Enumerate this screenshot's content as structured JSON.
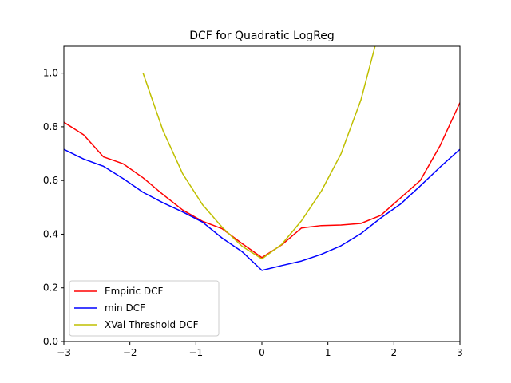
{
  "chart_data": {
    "type": "line",
    "title": "DCF for Quadratic LogReg",
    "xlabel": "",
    "ylabel": "",
    "xlim": [
      -3,
      3
    ],
    "ylim": [
      0,
      1.1
    ],
    "xticks": [
      -3,
      -2,
      -1,
      0,
      1,
      2,
      3
    ],
    "xtick_labels": [
      "−3",
      "−2",
      "−1",
      "0",
      "1",
      "2",
      "3"
    ],
    "yticks": [
      0.0,
      0.2,
      0.4,
      0.6,
      0.8,
      1.0
    ],
    "ytick_labels": [
      "0.0",
      "0.2",
      "0.4",
      "0.6",
      "0.8",
      "1.0"
    ],
    "grid": false,
    "legend_position": "lower-left",
    "x": [
      -3.0,
      -2.7,
      -2.4,
      -2.1,
      -1.8,
      -1.5,
      -1.2,
      -0.9,
      -0.6,
      -0.3,
      0.0,
      0.3,
      0.6,
      0.9,
      1.2,
      1.5,
      1.8,
      2.1,
      2.4,
      2.7,
      3.0
    ],
    "series": [
      {
        "name": "Empiric DCF",
        "color": "#ff0000",
        "values": [
          0.817,
          0.77,
          0.688,
          0.662,
          0.61,
          0.548,
          0.49,
          0.448,
          0.42,
          0.365,
          0.313,
          0.36,
          0.423,
          0.432,
          0.434,
          0.44,
          0.47,
          0.535,
          0.6,
          0.73,
          0.89
        ]
      },
      {
        "name": "min DCF",
        "color": "#0000ff",
        "values": [
          0.716,
          0.68,
          0.653,
          0.607,
          0.556,
          0.517,
          0.483,
          0.445,
          0.385,
          0.335,
          0.265,
          0.283,
          0.3,
          0.325,
          0.357,
          0.402,
          0.46,
          0.512,
          0.58,
          0.65,
          0.716
        ]
      },
      {
        "name": "XVal Threshold DCF",
        "color": "#bfbf00",
        "values": [
          null,
          null,
          null,
          null,
          1.0,
          0.787,
          0.625,
          0.51,
          0.425,
          0.355,
          0.308,
          0.362,
          0.45,
          0.56,
          0.7,
          0.9,
          1.18,
          null,
          null,
          null,
          null
        ]
      }
    ]
  }
}
